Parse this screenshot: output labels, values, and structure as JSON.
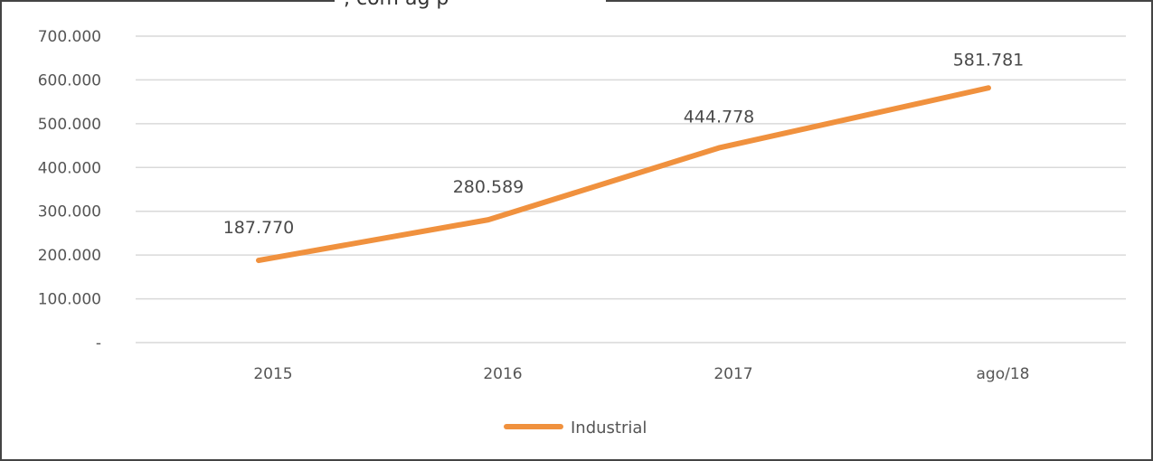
{
  "caption_fragment": ", com ag    p",
  "chart_data": {
    "type": "line",
    "categories": [
      "2015",
      "2016",
      "2017",
      "ago/18"
    ],
    "series": [
      {
        "name": "Industrial",
        "values": [
          187770,
          280589,
          444778,
          581781
        ],
        "labels": [
          "187.770",
          "280.589",
          "444.778",
          "581.781"
        ],
        "color": "#F0913E"
      }
    ],
    "yticks": [
      {
        "value": 700000,
        "label": "700.000"
      },
      {
        "value": 600000,
        "label": "600.000"
      },
      {
        "value": 500000,
        "label": "500.000"
      },
      {
        "value": 400000,
        "label": "400.000"
      },
      {
        "value": 300000,
        "label": "300.000"
      },
      {
        "value": 200000,
        "label": "200.000"
      },
      {
        "value": 100000,
        "label": "100.000"
      },
      {
        "value": 0,
        "label": "-"
      }
    ],
    "ylim": [
      0,
      700000
    ],
    "grid": true,
    "legend": "bottom-center",
    "gridColor": "#D9D9D9"
  }
}
